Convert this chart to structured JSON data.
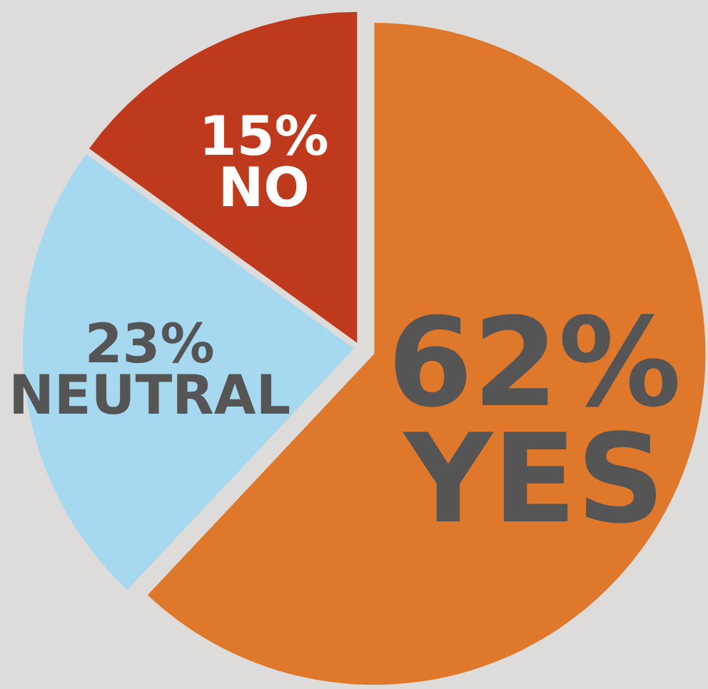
{
  "chart_data": {
    "type": "pie",
    "categories": [
      "YES",
      "NEUTRAL",
      "NO"
    ],
    "values": [
      62,
      23,
      15
    ],
    "colors": [
      "#e0782b",
      "#a6d8f0",
      "#bf3a1d"
    ],
    "value_labels": [
      "62%",
      "23%",
      "15%"
    ]
  }
}
